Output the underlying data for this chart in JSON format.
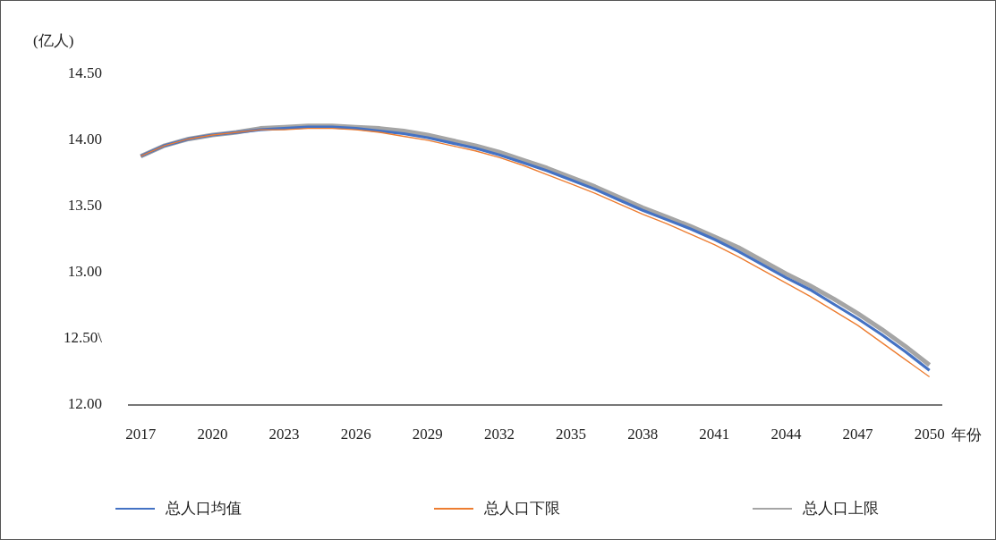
{
  "chart_data": {
    "type": "line",
    "ylabel": "(亿人)",
    "xlabel": "年份",
    "categories": [
      "2017",
      null,
      null,
      "2020",
      null,
      null,
      "2023",
      null,
      null,
      "2026",
      null,
      null,
      "2029",
      null,
      null,
      "2032",
      null,
      null,
      "2035",
      null,
      null,
      "2038",
      null,
      null,
      "2041",
      null,
      null,
      "2044",
      null,
      null,
      "2047",
      null,
      null,
      "2050"
    ],
    "series": [
      {
        "name": "总人口均值",
        "color": "#4472c4",
        "values": [
          13.88,
          13.96,
          14.01,
          14.04,
          14.06,
          14.08,
          14.09,
          14.1,
          14.1,
          14.09,
          14.07,
          14.05,
          14.02,
          13.98,
          13.94,
          13.89,
          13.83,
          13.77,
          13.7,
          13.63,
          13.55,
          13.47,
          13.4,
          13.33,
          13.25,
          13.16,
          13.06,
          12.96,
          12.87,
          12.76,
          12.65,
          12.53,
          12.4,
          12.26
        ]
      },
      {
        "name": "总人口下限",
        "color": "#ed7d31",
        "values": [
          13.88,
          13.96,
          14.01,
          14.04,
          14.06,
          14.08,
          14.08,
          14.09,
          14.09,
          14.08,
          14.06,
          14.03,
          14.0,
          13.96,
          13.92,
          13.87,
          13.81,
          13.74,
          13.67,
          13.6,
          13.52,
          13.44,
          13.37,
          13.29,
          13.21,
          13.12,
          13.02,
          12.92,
          12.82,
          12.71,
          12.6,
          12.47,
          12.34,
          12.21
        ]
      },
      {
        "name": "总人口上限",
        "color": "#a5a5a5",
        "values": [
          13.88,
          13.96,
          14.01,
          14.04,
          14.06,
          14.09,
          14.1,
          14.11,
          14.11,
          14.1,
          14.09,
          14.07,
          14.04,
          14.0,
          13.96,
          13.91,
          13.85,
          13.79,
          13.72,
          13.65,
          13.57,
          13.49,
          13.42,
          13.35,
          13.27,
          13.19,
          13.09,
          12.99,
          12.9,
          12.8,
          12.69,
          12.57,
          12.44,
          12.3
        ]
      }
    ],
    "ylim": [
      12,
      14.5
    ],
    "yticks": [
      {
        "value": 12,
        "label": "12.00"
      },
      {
        "value": 12.5,
        "label": "12.50\\"
      },
      {
        "value": 13,
        "label": "13.00"
      },
      {
        "value": 13.5,
        "label": "13.50"
      },
      {
        "value": 14,
        "label": "14.00"
      },
      {
        "value": 14.5,
        "label": "14.50"
      }
    ],
    "grid": false,
    "legend": "bottom",
    "marker": "none",
    "line_style": "solid"
  }
}
